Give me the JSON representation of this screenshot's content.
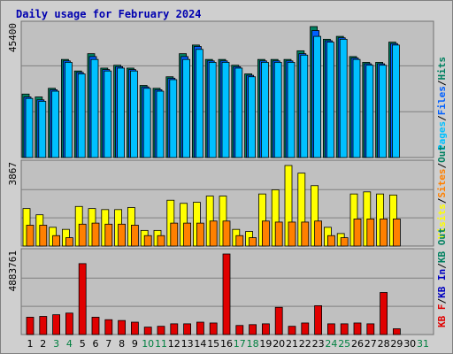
{
  "title": "Daily usage for February 2024",
  "colors": {
    "hits": "#008060",
    "files": "#0060ff",
    "pages": "#00c0ff",
    "visits": "#ffff00",
    "sites": "#ff8000",
    "kbin": "#0000c0",
    "kbout": "#008060",
    "kbf": "#e00000",
    "weekday": "#000000",
    "weekend": "#008040"
  },
  "chart_data": [
    {
      "type": "bar",
      "ymax_label": "45400",
      "ylim": [
        0,
        45400
      ],
      "legend": [
        "Pages",
        "/",
        "Files",
        "/",
        "Hits"
      ],
      "categories": [
        "1",
        "2",
        "3",
        "4",
        "5",
        "6",
        "7",
        "8",
        "9",
        "10",
        "11",
        "12",
        "13",
        "14",
        "15",
        "16",
        "17",
        "18",
        "19",
        "20",
        "21",
        "22",
        "23",
        "24",
        "25",
        "26",
        "27",
        "28",
        "29",
        "30",
        "31"
      ],
      "series": [
        {
          "name": "Hits",
          "values": [
            22000,
            21000,
            24000,
            34000,
            30000,
            36000,
            31000,
            32000,
            31000,
            25000,
            24000,
            28000,
            36000,
            39000,
            34000,
            34000,
            32000,
            29000,
            34000,
            34000,
            34000,
            37000,
            45400,
            41000,
            42000,
            35000,
            33000,
            33000,
            40000,
            null,
            null
          ]
        },
        {
          "name": "Files",
          "values": [
            21000,
            20000,
            23500,
            33500,
            29500,
            35000,
            30500,
            31500,
            30500,
            24500,
            23500,
            27500,
            35000,
            38500,
            33500,
            33500,
            31500,
            28500,
            33500,
            33500,
            33500,
            36000,
            44000,
            40500,
            41500,
            34500,
            32500,
            32500,
            39500,
            null,
            null
          ]
        },
        {
          "name": "Pages",
          "values": [
            20500,
            19500,
            23000,
            33000,
            29000,
            34000,
            30000,
            31000,
            30000,
            24000,
            23000,
            27000,
            34000,
            37500,
            33000,
            33000,
            31000,
            28000,
            33000,
            33000,
            33000,
            35500,
            42000,
            40000,
            41000,
            34000,
            32000,
            32000,
            39000,
            null,
            null
          ]
        }
      ]
    },
    {
      "type": "bar",
      "ymax_label": "3867",
      "ylim": [
        0,
        3867
      ],
      "legend": [
        "Visits",
        "/",
        "Sites",
        "/",
        "Out"
      ],
      "categories": [
        "1",
        "2",
        "3",
        "4",
        "5",
        "6",
        "7",
        "8",
        "9",
        "10",
        "11",
        "12",
        "13",
        "14",
        "15",
        "16",
        "17",
        "18",
        "19",
        "20",
        "21",
        "22",
        "23",
        "24",
        "25",
        "26",
        "27",
        "28",
        "29",
        "30",
        "31"
      ],
      "series": [
        {
          "name": "Visits",
          "values": [
            1800,
            1500,
            900,
            800,
            1900,
            1800,
            1750,
            1750,
            1850,
            750,
            750,
            2200,
            2050,
            2100,
            2400,
            2400,
            800,
            700,
            2500,
            2700,
            3867,
            3500,
            2900,
            900,
            600,
            2500,
            2600,
            2500,
            2450,
            null,
            null
          ]
        },
        {
          "name": "Sites",
          "values": [
            1000,
            1000,
            500,
            400,
            1050,
            1100,
            1050,
            1050,
            1000,
            500,
            500,
            1100,
            1100,
            1100,
            1200,
            1200,
            500,
            400,
            1200,
            1150,
            1150,
            1150,
            1200,
            500,
            400,
            1300,
            1300,
            1300,
            1300,
            null,
            null
          ]
        }
      ]
    },
    {
      "type": "bar",
      "ymax_label": "4883761",
      "ylim": [
        0,
        4883761
      ],
      "legend": [
        "KB F",
        "/",
        "KB In",
        "/",
        "KB Out"
      ],
      "categories": [
        "1",
        "2",
        "3",
        "4",
        "5",
        "6",
        "7",
        "8",
        "9",
        "10",
        "11",
        "12",
        "13",
        "14",
        "15",
        "16",
        "17",
        "18",
        "19",
        "20",
        "21",
        "22",
        "23",
        "24",
        "25",
        "26",
        "27",
        "28",
        "29",
        "30",
        "31"
      ],
      "series": [
        {
          "name": "KB F",
          "values": [
            1050000,
            1100000,
            1200000,
            1300000,
            4300000,
            1050000,
            900000,
            850000,
            750000,
            450000,
            500000,
            650000,
            650000,
            750000,
            700000,
            4883761,
            550000,
            600000,
            650000,
            1650000,
            500000,
            700000,
            1750000,
            650000,
            650000,
            700000,
            650000,
            2550000,
            350000,
            null,
            null
          ]
        }
      ]
    }
  ],
  "weekend_days": [
    "3",
    "4",
    "10",
    "11",
    "17",
    "18",
    "24",
    "25",
    "31"
  ]
}
